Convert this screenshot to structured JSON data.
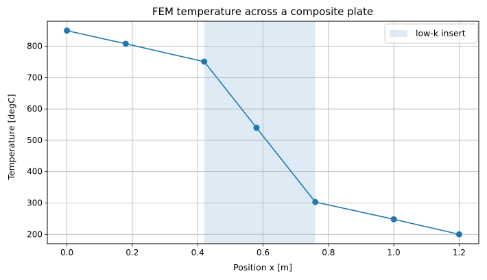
{
  "chart_data": {
    "type": "line",
    "title": "FEM temperature across a composite plate",
    "xlabel": "Position x [m]",
    "ylabel": "Temperature [degC]",
    "xlim": [
      -0.06,
      1.26
    ],
    "ylim": [
      170,
      880
    ],
    "xticks": [
      0.0,
      0.2,
      0.4,
      0.6,
      0.8,
      1.0,
      1.2
    ],
    "xtick_labels": [
      "0.0",
      "0.2",
      "0.4",
      "0.6",
      "0.8",
      "1.0",
      "1.2"
    ],
    "yticks": [
      200,
      300,
      400,
      500,
      600,
      700,
      800
    ],
    "ytick_labels": [
      "200",
      "300",
      "400",
      "500",
      "600",
      "700",
      "800"
    ],
    "grid": true,
    "legend_position": "top-right",
    "series": [
      {
        "x": [
          0.0,
          0.18,
          0.42,
          0.58,
          0.76,
          1.0,
          1.2
        ],
        "y": [
          850,
          808,
          751,
          540,
          303,
          248,
          200
        ],
        "color": "#1f77b4",
        "marker": "circle"
      }
    ],
    "shaded_regions": [
      {
        "x_start": 0.42,
        "x_end": 0.76,
        "label": "low-k insert",
        "color": "#1f77b4",
        "alpha": 0.15
      }
    ]
  }
}
